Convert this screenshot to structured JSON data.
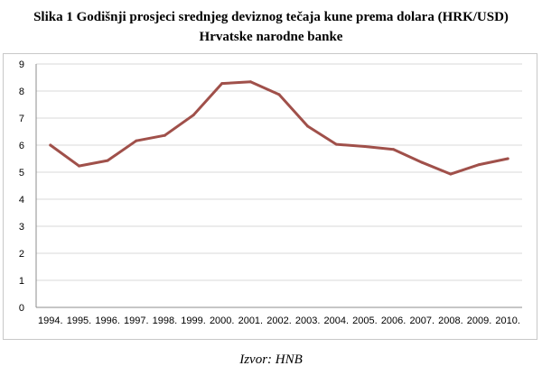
{
  "title_line1": "Slika 1 Godišnji prosjeci srednjeg deviznog tečaja kune prema dolara (HRK/USD)",
  "title_line2": "Hrvatske narodne banke",
  "source": "Izvor: HNB",
  "colors": {
    "line": "#a0504a",
    "grid": "#d9d9d9",
    "axis": "#8c8c8c"
  },
  "chart_data": {
    "type": "line",
    "title": "Slika 1 Godišnji prosjeci srednjeg deviznog tečaja kune prema dolara (HRK/USD) Hrvatske narodne banke",
    "xlabel": "",
    "ylabel": "",
    "ylim": [
      0,
      9
    ],
    "yticks": [
      0,
      1,
      2,
      3,
      4,
      5,
      6,
      7,
      8,
      9
    ],
    "grid": true,
    "legend": "none",
    "categories": [
      "1994.",
      "1995.",
      "1996.",
      "1997.",
      "1998.",
      "1999.",
      "2000.",
      "2001.",
      "2002.",
      "2003.",
      "2004.",
      "2005.",
      "2006.",
      "2007.",
      "2008.",
      "2009.",
      "2010."
    ],
    "series": [
      {
        "values": [
          6.0,
          5.23,
          5.43,
          6.16,
          6.36,
          7.11,
          8.28,
          8.34,
          7.87,
          6.7,
          6.03,
          5.95,
          5.84,
          5.36,
          4.93,
          5.28,
          5.5
        ]
      }
    ]
  }
}
